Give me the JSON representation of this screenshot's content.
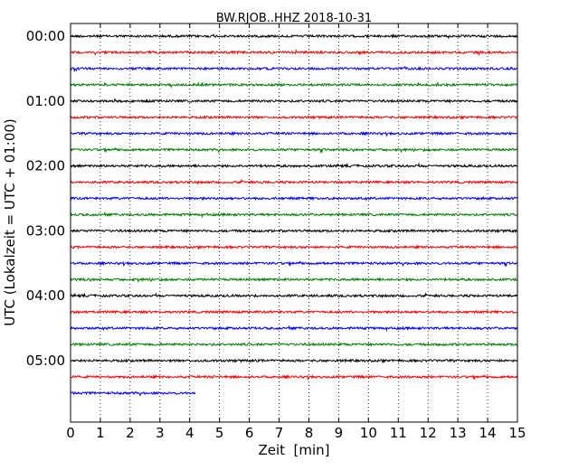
{
  "chart_data": {
    "type": "line",
    "title": "BW.RJOB..HHZ 2018-10-31",
    "xlabel": "Zeit  [min]",
    "ylabel": "UTC (Lokalzeit = UTC + 01:00)",
    "xlim": [
      0,
      15
    ],
    "x_ticks": [
      0,
      1,
      2,
      3,
      4,
      5,
      6,
      7,
      8,
      9,
      10,
      11,
      12,
      13,
      14,
      15
    ],
    "x_tick_labels": [
      "0",
      "1",
      "2",
      "3",
      "4",
      "5",
      "6",
      "7",
      "8",
      "9",
      "10",
      "11",
      "12",
      "13",
      "14",
      "15"
    ],
    "y_tick_labels": [
      "00:00",
      "01:00",
      "02:00",
      "03:00",
      "04:00",
      "05:00"
    ],
    "grid": "vertical dotted",
    "color_cycle": [
      "#000000",
      "#ff0000",
      "#0000ff",
      "#008000"
    ],
    "trace_interval_minutes": 15,
    "traces": [
      {
        "start": "00:00",
        "end_minute": 15
      },
      {
        "start": "00:15",
        "end_minute": 15
      },
      {
        "start": "00:30",
        "end_minute": 15
      },
      {
        "start": "00:45",
        "end_minute": 15
      },
      {
        "start": "01:00",
        "end_minute": 15
      },
      {
        "start": "01:15",
        "end_minute": 15
      },
      {
        "start": "01:30",
        "end_minute": 15
      },
      {
        "start": "01:45",
        "end_minute": 15
      },
      {
        "start": "02:00",
        "end_minute": 15
      },
      {
        "start": "02:15",
        "end_minute": 15
      },
      {
        "start": "02:30",
        "end_minute": 15
      },
      {
        "start": "02:45",
        "end_minute": 15
      },
      {
        "start": "03:00",
        "end_minute": 15
      },
      {
        "start": "03:15",
        "end_minute": 15
      },
      {
        "start": "03:30",
        "end_minute": 15
      },
      {
        "start": "03:45",
        "end_minute": 15
      },
      {
        "start": "04:00",
        "end_minute": 15
      },
      {
        "start": "04:15",
        "end_minute": 15
      },
      {
        "start": "04:30",
        "end_minute": 15
      },
      {
        "start": "04:45",
        "end_minute": 15
      },
      {
        "start": "05:00",
        "end_minute": 15
      },
      {
        "start": "05:15",
        "end_minute": 15
      },
      {
        "start": "05:30",
        "end_minute": 4.2
      }
    ]
  }
}
